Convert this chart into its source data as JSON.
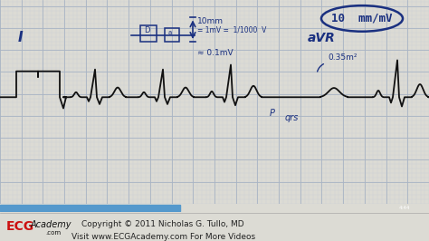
{
  "bg_color": "#dcdbd4",
  "grid_major_color": "#a8b4c4",
  "grid_minor_color": "#c8cfd8",
  "ecg_color": "#111111",
  "annotation_color": "#1a3080",
  "footer_bg": "#c8c4bc",
  "footer_text_color": "#222222",
  "footer_line1": "Copyright © 2011 Nicholas G. Tullo, MD",
  "footer_line2": "Visit www.ECGAcademy.com For More Videos",
  "logo_ecg_color": "#cc1111",
  "logo_text_color": "#111111",
  "label_I": "I",
  "label_aVR": "aVR",
  "annotation_top": "10  mm/mV",
  "figsize": [
    4.74,
    2.66
  ],
  "dpi": 100,
  "seek_bar_color": "#5599cc",
  "seek_bar_dark": "#555555",
  "video_bar_color": "#888888"
}
